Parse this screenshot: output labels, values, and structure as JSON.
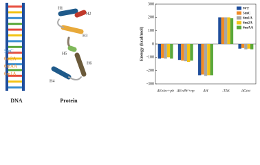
{
  "diagram": {
    "dna_labels": [
      "5mC",
      "6m2A",
      "6mAA",
      "6m1A"
    ],
    "dna_title": "DNA",
    "protein_title": "Protein",
    "helices": [
      "H1",
      "H2",
      "H3",
      "H4",
      "H5",
      "H6"
    ]
  },
  "chart_data": {
    "type": "bar",
    "y_label": "Energy (kcal/mol)",
    "categories": [
      "ΔEelec+pb",
      "ΔEvdW+np",
      "ΔH",
      "-TΔS",
      "ΔGtot"
    ],
    "series": [
      {
        "name": "WT",
        "color": "#1f4e9c",
        "values": [
          -110,
          -120,
          -235,
          200,
          -35
        ]
      },
      {
        "name": "5mC",
        "color": "#f08a24",
        "values": [
          -105,
          -125,
          -230,
          200,
          -30
        ]
      },
      {
        "name": "6m1A",
        "color": "#a6a6a6",
        "values": [
          -110,
          -130,
          -240,
          200,
          -40
        ]
      },
      {
        "name": "6m2A",
        "color": "#f2c316",
        "values": [
          -100,
          -135,
          -235,
          200,
          -35
        ]
      },
      {
        "name": "6mAA",
        "color": "#5aa83a",
        "values": [
          -110,
          -125,
          -235,
          195,
          -40
        ]
      }
    ],
    "ylim": [
      -300,
      300
    ],
    "yticks": [
      -300,
      -200,
      -100,
      0,
      100,
      200,
      300
    ]
  }
}
